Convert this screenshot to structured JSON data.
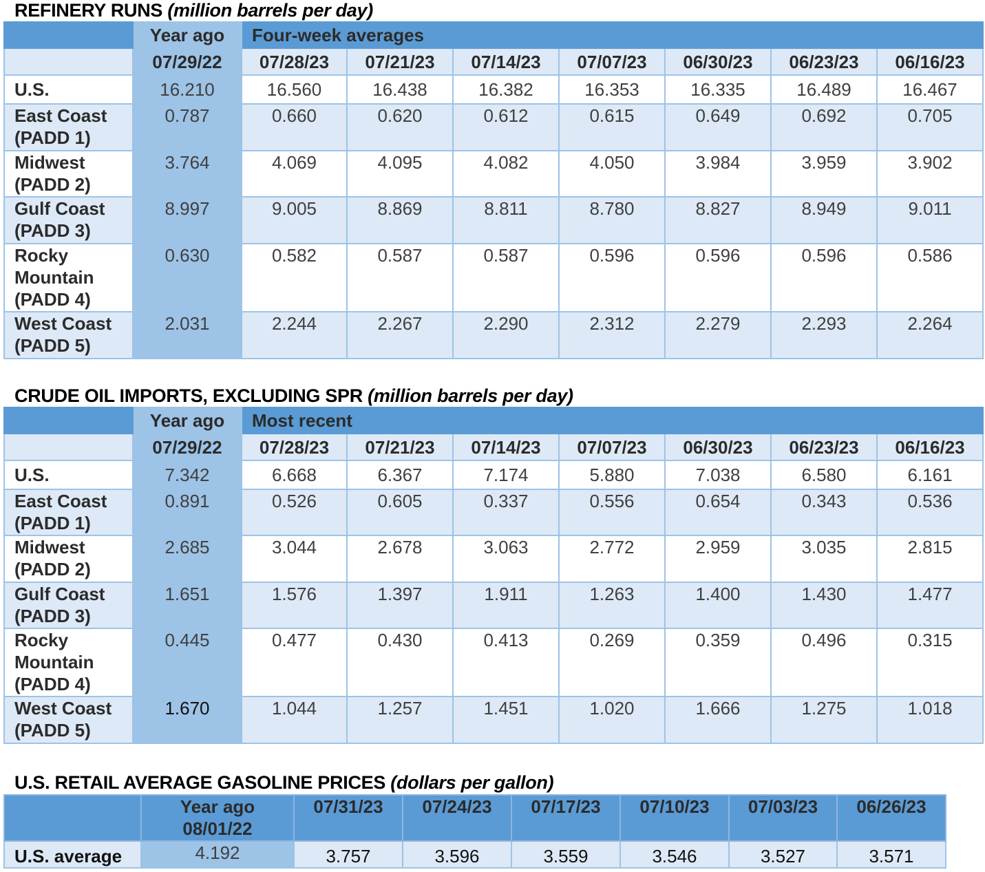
{
  "refinery": {
    "title": "REFINERY RUNS",
    "unit": "(million barrels per day)",
    "year_ago_label": "Year ago",
    "group_label": "Four-week averages",
    "year_ago_date": "07/29/22",
    "dates": [
      "07/28/23",
      "07/21/23",
      "07/14/23",
      "07/07/23",
      "06/30/23",
      "06/23/23",
      "06/16/23"
    ],
    "rows": [
      {
        "label": [
          "U.S."
        ],
        "year_ago": "16.210",
        "values": [
          "16.560",
          "16.438",
          "16.382",
          "16.353",
          "16.335",
          "16.489",
          "16.467"
        ]
      },
      {
        "label": [
          "East Coast",
          "(PADD 1)"
        ],
        "year_ago": "0.787",
        "values": [
          "0.660",
          "0.620",
          "0.612",
          "0.615",
          "0.649",
          "0.692",
          "0.705"
        ]
      },
      {
        "label": [
          "Midwest",
          "(PADD 2)"
        ],
        "year_ago": "3.764",
        "values": [
          "4.069",
          "4.095",
          "4.082",
          "4.050",
          "3.984",
          "3.959",
          "3.902"
        ]
      },
      {
        "label": [
          "Gulf Coast",
          "(PADD 3)"
        ],
        "year_ago": "8.997",
        "values": [
          "9.005",
          "8.869",
          "8.811",
          "8.780",
          "8.827",
          "8.949",
          "9.011"
        ]
      },
      {
        "label": [
          "Rocky",
          "Mountain",
          "(PADD 4)"
        ],
        "year_ago": "0.630",
        "values": [
          "0.582",
          "0.587",
          "0.587",
          "0.596",
          "0.596",
          "0.596",
          "0.586"
        ]
      },
      {
        "label": [
          "West Coast",
          "(PADD 5)"
        ],
        "year_ago": "2.031",
        "values": [
          "2.244",
          "2.267",
          "2.290",
          "2.312",
          "2.279",
          "2.293",
          "2.264"
        ]
      }
    ]
  },
  "imports": {
    "title": "CRUDE OIL IMPORTS, EXCLUDING SPR",
    "unit": "(million barrels per day)",
    "year_ago_label": "Year ago",
    "group_label": "Most recent",
    "year_ago_date": "07/29/22",
    "dates": [
      "07/28/23",
      "07/21/23",
      "07/14/23",
      "07/07/23",
      "06/30/23",
      "06/23/23",
      "06/16/23"
    ],
    "rows": [
      {
        "label": [
          "U.S."
        ],
        "year_ago": "7.342",
        "values": [
          "6.668",
          "6.367",
          "7.174",
          "5.880",
          "7.038",
          "6.580",
          "6.161"
        ]
      },
      {
        "label": [
          "East Coast",
          "(PADD 1)"
        ],
        "year_ago": "0.891",
        "values": [
          "0.526",
          "0.605",
          "0.337",
          "0.556",
          "0.654",
          "0.343",
          "0.536"
        ]
      },
      {
        "label": [
          "Midwest",
          "(PADD 2)"
        ],
        "year_ago": "2.685",
        "values": [
          "3.044",
          "2.678",
          "3.063",
          "2.772",
          "2.959",
          "3.035",
          "2.815"
        ]
      },
      {
        "label": [
          "Gulf Coast",
          "(PADD 3)"
        ],
        "year_ago": "1.651",
        "values": [
          "1.576",
          "1.397",
          "1.911",
          "1.263",
          "1.400",
          "1.430",
          "1.477"
        ]
      },
      {
        "label": [
          "Rocky",
          "Mountain",
          "(PADD 4)"
        ],
        "year_ago": "0.445",
        "values": [
          "0.477",
          "0.430",
          "0.413",
          "0.269",
          "0.359",
          "0.496",
          "0.315"
        ]
      },
      {
        "label": [
          "West Coast",
          "(PADD 5)"
        ],
        "year_ago": "1.670",
        "values": [
          "1.044",
          "1.257",
          "1.451",
          "1.020",
          "1.666",
          "1.275",
          "1.018"
        ]
      }
    ]
  },
  "gasoline": {
    "title": "U.S. RETAIL AVERAGE GASOLINE PRICES",
    "unit": "(dollars per gallon)",
    "year_ago_label": "Year ago",
    "year_ago_date": "08/01/22",
    "dates": [
      "07/31/23",
      "07/24/23",
      "07/17/23",
      "07/10/23",
      "07/03/23",
      "06/26/23"
    ],
    "row_label": "U.S. average",
    "year_ago": "4.192",
    "values": [
      "3.757",
      "3.596",
      "3.559",
      "3.546",
      "3.527",
      "3.571"
    ]
  }
}
